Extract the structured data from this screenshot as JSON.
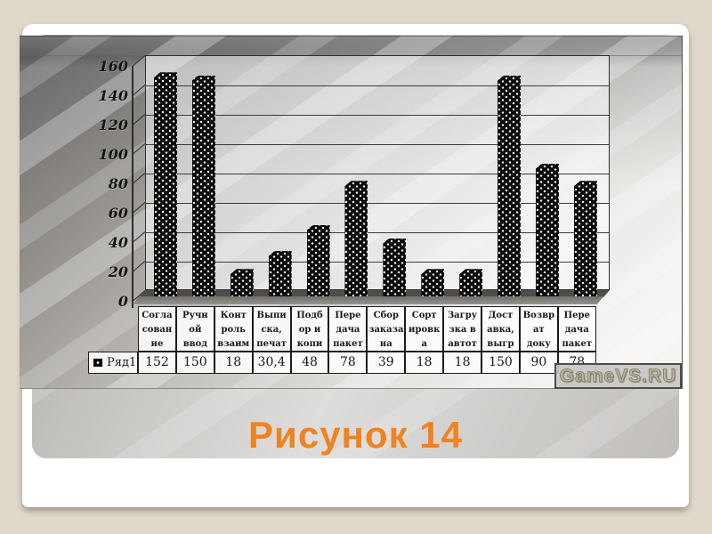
{
  "slide": {
    "caption": "Рисунок 14",
    "caption_color": "#ef8322"
  },
  "watermark": "GameVS.RU",
  "chart_data": {
    "type": "bar",
    "title": "",
    "xlabel": "",
    "ylabel": "",
    "categories": [
      "Согла\nсован\nие",
      "Ручн\nой\nввод",
      "Конт\nроль\nвзаим",
      "Выпи\nска,\nпечат",
      "Подб\nор и\nкопи",
      "Пере\nдача\nпакет",
      "Сбор\nзаказа\nна",
      "Сорт\nировк\nа",
      "Загру\nзка в\nавтот",
      "Дост\nавка,\nвыгр",
      "Возвр\nат\nдоку",
      "Пере\nдача\nпакет"
    ],
    "series": [
      {
        "name": "Ряд1",
        "values": [
          152,
          150,
          18,
          30.4,
          48,
          78,
          39,
          18,
          18,
          150,
          90,
          78
        ],
        "value_labels": [
          "152",
          "150",
          "18",
          "30,4",
          "48",
          "78",
          "39",
          "18",
          "18",
          "150",
          "90",
          "78"
        ]
      }
    ],
    "y_ticks": [
      0,
      20,
      40,
      60,
      80,
      100,
      120,
      140,
      160
    ],
    "ylim": [
      0,
      160
    ],
    "grid": true,
    "legend_position": "bottom-table",
    "bar_style": {
      "fill": "#0b0b0b",
      "pattern": "white-dots",
      "effect": "3d"
    }
  }
}
